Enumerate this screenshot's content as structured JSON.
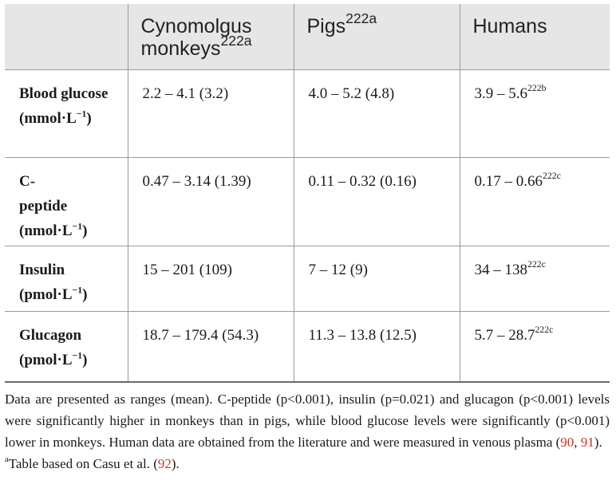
{
  "table": {
    "headers": [
      {
        "text": "",
        "sup": ""
      },
      {
        "text": "Cynomolgus monkeys",
        "sup": "222a"
      },
      {
        "text": "Pigs",
        "sup": "222a"
      },
      {
        "text": "Humans",
        "sup": ""
      }
    ],
    "rows": [
      {
        "label": "Blood glucose",
        "unit_prefix": "(mmol·L",
        "unit_exp": "−1",
        "unit_suffix": ")",
        "monkeys": "2.2 – 4.1 (3.2)",
        "pigs": "4.0 – 5.2 (4.8)",
        "humans": "3.9 – 5.6",
        "humans_sup": "222b"
      },
      {
        "label": "C-peptide",
        "unit_prefix": "(nmol·L",
        "unit_exp": "−1",
        "unit_suffix": ")",
        "monkeys": "0.47 – 3.14 (1.39)",
        "pigs": "0.11 – 0.32 (0.16)",
        "humans": "0.17 – 0.66",
        "humans_sup": "222c"
      },
      {
        "label": "Insulin",
        "unit_prefix": "(pmol·L",
        "unit_exp": "−1",
        "unit_suffix": ")",
        "monkeys": "15 – 201 (109)",
        "pigs": "7 – 12 (9)",
        "humans": "34 – 138",
        "humans_sup": "222c"
      },
      {
        "label": "Glucagon",
        "unit_prefix": "(pmol·L",
        "unit_exp": "−1",
        "unit_suffix": ")",
        "monkeys": "18.7 – 179.4 (54.3)",
        "pigs": "11.3 – 13.8 (12.5)",
        "humans": "5.7 – 28.7",
        "humans_sup": "222c"
      }
    ]
  },
  "footnote": {
    "text_main": "Data are presented as ranges (mean). C-peptide (p<0.001), insulin (p=0.021) and glucagon (p<0.001) levels were significantly higher in monkeys than in pigs, while blood glucose levels were significantly (p<0.001) lower in monkeys. Human data are obtained from the literature and were measured in venous plasma (",
    "ref1": "90",
    "sep": ", ",
    "ref2": "91",
    "text_end": ").",
    "note_sup": "a",
    "note_text": "Table based on Casu et al. (",
    "note_ref": "92",
    "note_end": ")."
  },
  "colors": {
    "header_bg": "#e6e6e6",
    "rule": "#9a9a9a",
    "ref_link": "#c0392b"
  }
}
